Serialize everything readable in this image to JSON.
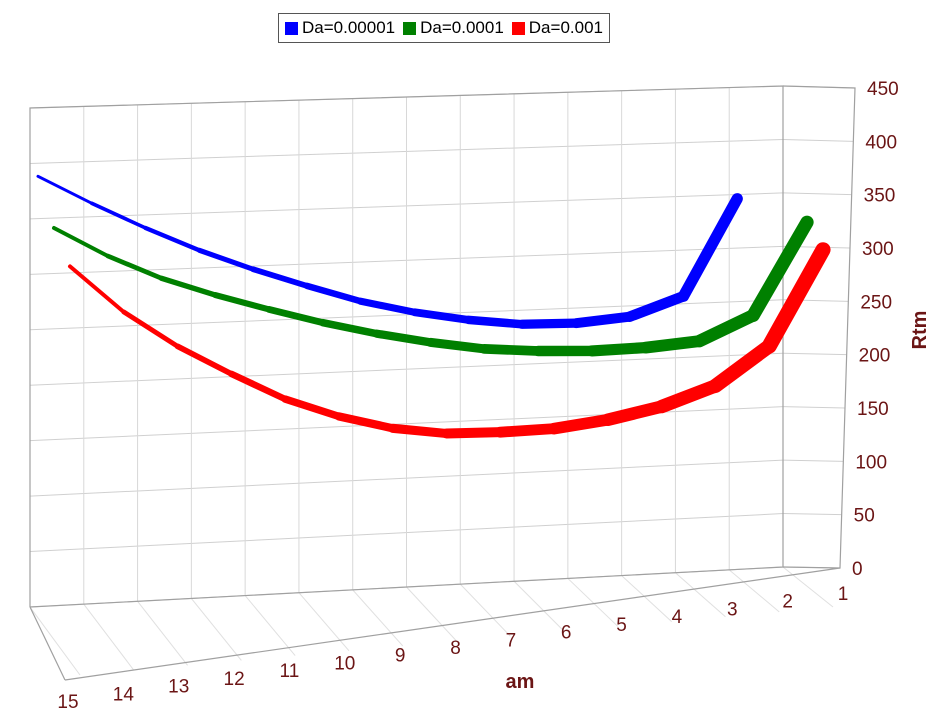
{
  "chart_data": {
    "type": "line",
    "xlabel": "am",
    "ylabel": "Rtm",
    "x": [
      1,
      2,
      3,
      4,
      5,
      6,
      7,
      8,
      9,
      10,
      11,
      12,
      13,
      14,
      15
    ],
    "x_display_order": [
      15,
      14,
      13,
      12,
      11,
      10,
      9,
      8,
      7,
      6,
      5,
      4,
      3,
      2,
      1
    ],
    "ylim": [
      0,
      450
    ],
    "yticks": [
      0,
      50,
      100,
      150,
      200,
      250,
      300,
      350,
      400,
      450
    ],
    "grid": true,
    "legend_position": "top",
    "series": [
      {
        "name": "Da=0.00001",
        "color": "#0000ff",
        "x": [
          2,
          3,
          4,
          5,
          6,
          7,
          8,
          9,
          10,
          11,
          12,
          13,
          14,
          15
        ],
        "y": [
          350,
          261,
          244,
          240,
          241,
          247,
          256,
          268,
          284,
          301,
          320,
          342,
          366,
          392
        ]
      },
      {
        "name": "Da=0.0001",
        "color": "#008000",
        "x": [
          1,
          2,
          3,
          4,
          5,
          6,
          7,
          8,
          9,
          10,
          11,
          12,
          13,
          14,
          15
        ],
        "y": [
          330,
          245,
          223,
          219,
          218,
          220,
          224,
          232,
          242,
          254,
          268,
          283,
          300,
          322,
          349
        ]
      },
      {
        "name": "Da=0.001",
        "color": "#ff0000",
        "x": [
          1,
          2,
          3,
          4,
          5,
          6,
          7,
          8,
          9,
          10,
          11,
          12,
          13,
          14,
          15
        ],
        "y": [
          308,
          220,
          185,
          168,
          158,
          152,
          151,
          152,
          159,
          172,
          190,
          215,
          242,
          275,
          318
        ]
      }
    ]
  }
}
